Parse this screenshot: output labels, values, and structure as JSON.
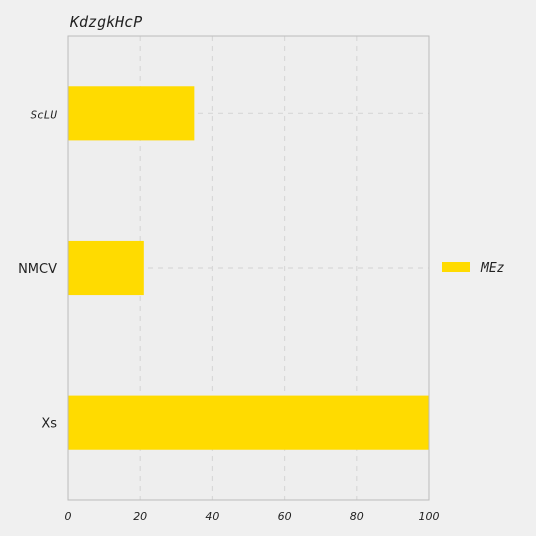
{
  "chart_data": {
    "type": "bar",
    "orientation": "horizontal",
    "title": "KdzgkHcP",
    "categories": [
      "ScLU",
      "NMCV",
      "Xs"
    ],
    "series": [
      {
        "name": "MEz",
        "values": [
          35,
          21,
          100
        ],
        "color": "#ffdb00"
      }
    ],
    "xlim": [
      0,
      100
    ],
    "xticks": [
      "0",
      "20",
      "40",
      "60",
      "80",
      "100"
    ],
    "grid": true,
    "legend_position": "right"
  },
  "colors": {
    "background": "#f0f0f0",
    "plot_background": "#eeeeee",
    "grid": "#d8d8d8",
    "axis": "#bbbbbb"
  }
}
